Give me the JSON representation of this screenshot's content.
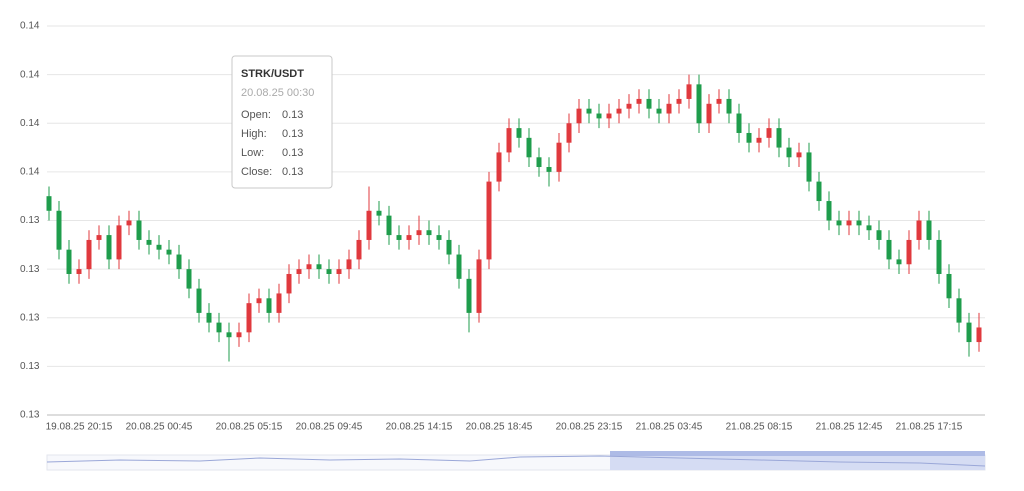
{
  "chart_data": {
    "type": "candlestick",
    "categories": [
      null,
      null,
      null,
      "19.08.25 20:15",
      null,
      null,
      null,
      null,
      null,
      null,
      null,
      "20.08.25 00:45",
      null,
      null,
      null,
      null,
      null,
      null,
      null,
      null,
      "20.08.25 05:15",
      null,
      null,
      null,
      null,
      null,
      null,
      null,
      "20.08.25 09:45",
      null,
      null,
      null,
      null,
      null,
      null,
      null,
      null,
      "20.08.25 14:15",
      null,
      null,
      null,
      null,
      null,
      null,
      null,
      "20.08.25 18:45",
      null,
      null,
      null,
      null,
      null,
      null,
      null,
      null,
      "20.08.25 23:15",
      null,
      null,
      null,
      null,
      null,
      null,
      null,
      "21.08.25 03:45",
      null,
      null,
      null,
      null,
      null,
      null,
      null,
      null,
      "21.08.25 08:15",
      null,
      null,
      null,
      null,
      null,
      null,
      null,
      null,
      "21.08.25 12:45",
      null,
      null,
      null,
      null,
      null,
      null,
      null,
      "21.08.25 17:15",
      null,
      null,
      null,
      null,
      null
    ],
    "open": [
      0.1345,
      0.1342,
      0.1334,
      0.1329,
      0.133,
      0.1336,
      0.1337,
      0.1332,
      0.1339,
      0.134,
      0.1336,
      0.1335,
      0.1334,
      0.1333,
      0.133,
      0.1326,
      0.1321,
      0.1319,
      0.1317,
      0.1316,
      0.1317,
      0.1323,
      0.1324,
      0.1321,
      0.1325,
      0.1329,
      0.133,
      0.1331,
      0.133,
      0.1329,
      0.133,
      0.1332,
      0.1336,
      0.1342,
      0.1341,
      0.1337,
      0.1336,
      0.1337,
      0.1338,
      0.1337,
      0.1336,
      0.1333,
      0.1328,
      0.1321,
      0.1332,
      0.1348,
      0.1354,
      0.1359,
      0.1357,
      0.1353,
      0.1351,
      0.135,
      0.1356,
      0.136,
      0.1363,
      0.1362,
      0.1361,
      0.1362,
      0.1363,
      0.1364,
      0.1365,
      0.1363,
      0.1362,
      0.1364,
      0.1365,
      0.1368,
      0.136,
      0.1364,
      0.1365,
      0.1362,
      0.1358,
      0.1356,
      0.1357,
      0.1359,
      0.1355,
      0.1353,
      0.1354,
      0.1348,
      0.1344,
      0.134,
      0.1339,
      0.134,
      0.1339,
      0.1338,
      0.1336,
      0.1332,
      0.1331,
      0.1336,
      0.134,
      0.1336,
      0.1329,
      0.1324,
      0.1319,
      0.1315
    ],
    "high": [
      0.1347,
      0.1344,
      0.1336,
      0.1332,
      0.1338,
      0.1339,
      0.1339,
      0.1341,
      0.1342,
      0.1342,
      0.1338,
      0.1337,
      0.1336,
      0.1335,
      0.1332,
      0.1328,
      0.1323,
      0.1321,
      0.1319,
      0.1319,
      0.1325,
      0.1326,
      0.1326,
      0.1327,
      0.1331,
      0.1332,
      0.1333,
      0.1333,
      0.1332,
      0.1332,
      0.1334,
      0.1338,
      0.1347,
      0.1344,
      0.1343,
      0.1339,
      0.1339,
      0.1341,
      0.134,
      0.1339,
      0.1338,
      0.1335,
      0.133,
      0.1334,
      0.135,
      0.1356,
      0.1361,
      0.1361,
      0.1359,
      0.1355,
      0.1353,
      0.1358,
      0.1362,
      0.1365,
      0.1365,
      0.1364,
      0.1364,
      0.1365,
      0.1366,
      0.1367,
      0.1367,
      0.1365,
      0.1366,
      0.1367,
      0.137,
      0.137,
      0.1366,
      0.1367,
      0.1367,
      0.1364,
      0.136,
      0.1359,
      0.1361,
      0.1361,
      0.1357,
      0.1356,
      0.1356,
      0.135,
      0.1346,
      0.1342,
      0.1342,
      0.1342,
      0.1341,
      0.134,
      0.1338,
      0.1334,
      0.1338,
      0.1342,
      0.1342,
      0.1338,
      0.1331,
      0.1326,
      0.1321,
      0.1321
    ],
    "low": [
      0.134,
      0.1332,
      0.1327,
      0.1327,
      0.1328,
      0.1334,
      0.133,
      0.133,
      0.1337,
      0.1334,
      0.1333,
      0.1332,
      0.1331,
      0.1328,
      0.1324,
      0.1319,
      0.1317,
      0.1315,
      0.1311,
      0.1314,
      0.1315,
      0.1321,
      0.1319,
      0.1319,
      0.1323,
      0.1327,
      0.1328,
      0.1328,
      0.1327,
      0.1327,
      0.1328,
      0.133,
      0.1334,
      0.1339,
      0.1335,
      0.1334,
      0.1334,
      0.1335,
      0.1335,
      0.1334,
      0.1331,
      0.1326,
      0.1317,
      0.1319,
      0.133,
      0.1346,
      0.1352,
      0.1355,
      0.1351,
      0.1349,
      0.1347,
      0.1348,
      0.1354,
      0.1358,
      0.136,
      0.1359,
      0.1359,
      0.136,
      0.1361,
      0.1362,
      0.1361,
      0.136,
      0.136,
      0.1362,
      0.1363,
      0.1358,
      0.1358,
      0.1362,
      0.136,
      0.1356,
      0.1354,
      0.1354,
      0.1355,
      0.1353,
      0.1351,
      0.1351,
      0.1346,
      0.1342,
      0.1338,
      0.1337,
      0.1337,
      0.1337,
      0.1336,
      0.1334,
      0.133,
      0.1329,
      0.1329,
      0.1334,
      0.1334,
      0.1327,
      0.1322,
      0.1317,
      0.1312,
      0.1313
    ],
    "close": [
      0.1342,
      0.1334,
      0.1329,
      0.133,
      0.1336,
      0.1337,
      0.1332,
      0.1339,
      0.134,
      0.1336,
      0.1335,
      0.1334,
      0.1333,
      0.133,
      0.1326,
      0.1321,
      0.1319,
      0.1317,
      0.1316,
      0.1317,
      0.1323,
      0.1324,
      0.1321,
      0.1325,
      0.1329,
      0.133,
      0.1331,
      0.133,
      0.1329,
      0.133,
      0.1332,
      0.1336,
      0.1342,
      0.1341,
      0.1337,
      0.1336,
      0.1337,
      0.1338,
      0.1337,
      0.1336,
      0.1333,
      0.1328,
      0.1321,
      0.1332,
      0.1348,
      0.1354,
      0.1359,
      0.1357,
      0.1353,
      0.1351,
      0.135,
      0.1356,
      0.136,
      0.1363,
      0.1362,
      0.1361,
      0.1362,
      0.1363,
      0.1364,
      0.1365,
      0.1363,
      0.1362,
      0.1364,
      0.1365,
      0.1368,
      0.136,
      0.1364,
      0.1365,
      0.1362,
      0.1358,
      0.1356,
      0.1357,
      0.1359,
      0.1355,
      0.1353,
      0.1354,
      0.1348,
      0.1344,
      0.134,
      0.1339,
      0.134,
      0.1339,
      0.1338,
      0.1336,
      0.1332,
      0.1331,
      0.1336,
      0.134,
      0.1336,
      0.1329,
      0.1324,
      0.1319,
      0.1315,
      0.1318
    ],
    "up_color": "#e0393e",
    "down_color": "#1f9d4c",
    "ylim": [
      0.13,
      0.138
    ],
    "yticks": [
      0.13,
      {
        "value": 0.131,
        "label": "0.13"
      },
      {
        "value": 0.132,
        "label": "0.13"
      },
      {
        "value": 0.133,
        "label": "0.13"
      },
      {
        "value": 0.134,
        "label": "0.13"
      },
      {
        "value": 0.135,
        "label": "0.14"
      },
      {
        "value": 0.136,
        "label": "0.14"
      },
      {
        "value": 0.137,
        "label": "0.14"
      },
      {
        "value": 0.138,
        "label": "0.14"
      }
    ],
    "grid": true,
    "tooltip": {
      "title": "STRK/USDT",
      "time": "20.08.25 00:30",
      "rows": [
        [
          "Open:",
          "0.13"
        ],
        [
          "High:",
          "0.13"
        ],
        [
          "Low:",
          "0.13"
        ],
        [
          "Close:",
          "0.13"
        ]
      ]
    }
  }
}
